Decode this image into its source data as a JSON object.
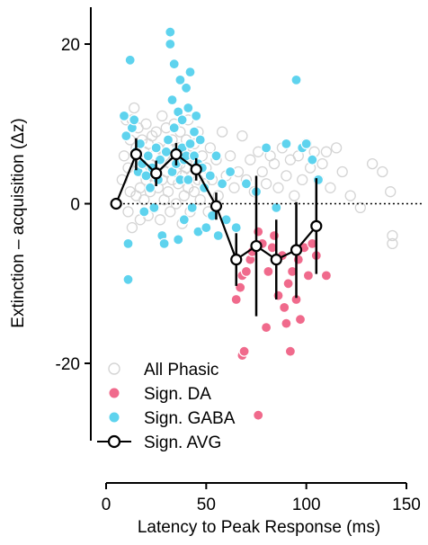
{
  "chart_data": {
    "type": "scatter",
    "title": "",
    "xlabel": "Latency to Peak Response (ms)",
    "ylabel": "Extinction – acquisition (Δz)",
    "xlim": [
      0,
      150
    ],
    "ylim": [
      -30,
      25
    ],
    "xticks": [
      {
        "value": 0,
        "label": "0"
      },
      {
        "value": 50,
        "label": "50"
      },
      {
        "value": 100,
        "label": "100"
      },
      {
        "value": 150,
        "label": "150"
      }
    ],
    "yticks": [
      {
        "value": 20,
        "label": "20"
      },
      {
        "value": 0,
        "label": "0"
      },
      {
        "value": -20,
        "label": "-20"
      }
    ],
    "zero_line": {
      "y": 0,
      "style": "dotted"
    },
    "legend": {
      "position": "bottom-left",
      "entries": [
        {
          "label": "All Phasic",
          "marker": "open-circle",
          "color": "#d4d4d4"
        },
        {
          "label": "Sign. DA",
          "marker": "filled-circle",
          "color": "#f06a8c"
        },
        {
          "label": "Sign. GABA",
          "marker": "filled-circle",
          "color": "#5ed3ee"
        },
        {
          "label": "Sign. AVG",
          "marker": "line-open-circle",
          "color": "#000000"
        }
      ]
    },
    "series": [
      {
        "name": "All Phasic",
        "color": "#d4d4d4",
        "marker": "open-circle",
        "points": [
          [
            8,
            3
          ],
          [
            9,
            6
          ],
          [
            10,
            10.5
          ],
          [
            11,
            4.5
          ],
          [
            11,
            -1
          ],
          [
            12,
            8
          ],
          [
            12,
            1.5
          ],
          [
            13,
            10.5
          ],
          [
            13,
            -3
          ],
          [
            14,
            12
          ],
          [
            15,
            7
          ],
          [
            15,
            1
          ],
          [
            16,
            5
          ],
          [
            16,
            9.5
          ],
          [
            17,
            2
          ],
          [
            17,
            -2
          ],
          [
            18,
            8
          ],
          [
            18,
            4
          ],
          [
            19,
            6.5
          ],
          [
            19,
            0.5
          ],
          [
            20,
            3
          ],
          [
            20,
            10
          ],
          [
            21,
            7.5
          ],
          [
            21,
            -1.5
          ],
          [
            22,
            5
          ],
          [
            22,
            1.5
          ],
          [
            23,
            8.5
          ],
          [
            23,
            3.5
          ],
          [
            24,
            6
          ],
          [
            24,
            -0.5
          ],
          [
            25,
            4
          ],
          [
            25,
            9
          ],
          [
            26,
            2
          ],
          [
            26,
            7
          ],
          [
            27,
            5.5
          ],
          [
            27,
            -2
          ],
          [
            28,
            11
          ],
          [
            28,
            3
          ],
          [
            29,
            6
          ],
          [
            29,
            0.5
          ],
          [
            30,
            9.5
          ],
          [
            30,
            4
          ],
          [
            31,
            7
          ],
          [
            31,
            1.5
          ],
          [
            32,
            5
          ],
          [
            32,
            -1
          ],
          [
            33,
            8
          ],
          [
            33,
            3
          ],
          [
            34,
            6
          ],
          [
            34,
            10
          ],
          [
            35,
            4
          ],
          [
            35,
            0
          ],
          [
            36,
            7
          ],
          [
            36,
            2.5
          ],
          [
            37,
            5
          ],
          [
            37,
            9
          ],
          [
            38,
            3.5
          ],
          [
            38,
            -2.5
          ],
          [
            39,
            6.5
          ],
          [
            39,
            1
          ],
          [
            40,
            8
          ],
          [
            40,
            4.5
          ],
          [
            41,
            2
          ],
          [
            41,
            10.5
          ],
          [
            42,
            6
          ],
          [
            42,
            -1
          ],
          [
            43,
            3.5
          ],
          [
            44,
            7.5
          ],
          [
            44,
            1.5
          ],
          [
            45,
            5
          ],
          [
            46,
            3
          ],
          [
            46,
            9
          ],
          [
            47,
            0.5
          ],
          [
            48,
            6
          ],
          [
            49,
            2.5
          ],
          [
            50,
            4.5
          ],
          [
            51,
            -1
          ],
          [
            52,
            7
          ],
          [
            53,
            3
          ],
          [
            55,
            5.5
          ],
          [
            56,
            1
          ],
          [
            58,
            9
          ],
          [
            60,
            3.5
          ],
          [
            62,
            6
          ],
          [
            64,
            2
          ],
          [
            66,
            4
          ],
          [
            68,
            8.5
          ],
          [
            70,
            3
          ],
          [
            72,
            5.5
          ],
          [
            74,
            1.5
          ],
          [
            76,
            6.5
          ],
          [
            78,
            4
          ],
          [
            80,
            2.5
          ],
          [
            82,
            6
          ],
          [
            84,
            5
          ],
          [
            86,
            2
          ],
          [
            88,
            7
          ],
          [
            90,
            3.5
          ],
          [
            92,
            5.5
          ],
          [
            94,
            1
          ],
          [
            96,
            6
          ],
          [
            98,
            3
          ],
          [
            100,
            7.5
          ],
          [
            102,
            4.5
          ],
          [
            104,
            6.5
          ],
          [
            106,
            3
          ],
          [
            108,
            5
          ],
          [
            110,
            6.5
          ],
          [
            112,
            2
          ],
          [
            115,
            7
          ],
          [
            118,
            4
          ],
          [
            122,
            1
          ],
          [
            127,
            -0.5
          ],
          [
            133,
            5
          ],
          [
            138,
            4
          ],
          [
            142,
            1.5
          ],
          [
            143,
            -4
          ],
          [
            143,
            -5
          ]
        ]
      },
      {
        "name": "Sign. DA",
        "color": "#f06a8c",
        "marker": "filled-circle",
        "points": [
          [
            65,
            -12
          ],
          [
            67,
            -10.5
          ],
          [
            68,
            -9
          ],
          [
            68,
            -19
          ],
          [
            69,
            -18.5
          ],
          [
            70,
            -8.5
          ],
          [
            72,
            -7
          ],
          [
            73,
            -6
          ],
          [
            76,
            -3.5
          ],
          [
            76,
            -26.5
          ],
          [
            78,
            -5
          ],
          [
            80,
            -15.5
          ],
          [
            81,
            -8.5
          ],
          [
            83,
            -5.5
          ],
          [
            84,
            -4
          ],
          [
            86,
            -11.5
          ],
          [
            88,
            -6.5
          ],
          [
            89,
            -13
          ],
          [
            90,
            -15
          ],
          [
            91,
            -10
          ],
          [
            92,
            -18.5
          ],
          [
            93,
            -8.5
          ],
          [
            95,
            -12
          ],
          [
            96,
            -7
          ],
          [
            97,
            -14.5
          ],
          [
            99,
            -5.5
          ],
          [
            101,
            -9
          ],
          [
            103,
            -5
          ],
          [
            105,
            -6.5
          ],
          [
            110,
            -9
          ]
        ]
      },
      {
        "name": "Sign. GABA",
        "color": "#5ed3ee",
        "marker": "filled-circle",
        "points": [
          [
            9,
            11
          ],
          [
            10,
            8.5
          ],
          [
            11,
            -5
          ],
          [
            11,
            -9.5
          ],
          [
            12,
            18
          ],
          [
            13,
            9.5
          ],
          [
            14,
            10.5
          ],
          [
            15,
            6.5
          ],
          [
            16,
            4
          ],
          [
            17,
            7.5
          ],
          [
            18,
            5
          ],
          [
            19,
            -1
          ],
          [
            20,
            3.5
          ],
          [
            21,
            6
          ],
          [
            22,
            2
          ],
          [
            23,
            4.5
          ],
          [
            24,
            -0.5
          ],
          [
            25,
            7
          ],
          [
            26,
            3
          ],
          [
            27,
            5.5
          ],
          [
            28,
            -4
          ],
          [
            29,
            -5
          ],
          [
            30,
            6.5
          ],
          [
            31,
            8
          ],
          [
            32,
            20
          ],
          [
            32,
            21.5
          ],
          [
            33,
            4
          ],
          [
            33,
            13
          ],
          [
            34,
            17.5
          ],
          [
            34,
            9.5
          ],
          [
            35,
            5
          ],
          [
            35,
            6.5
          ],
          [
            36,
            -4.5
          ],
          [
            36,
            11.5
          ],
          [
            37,
            15.5
          ],
          [
            37,
            3
          ],
          [
            38,
            7
          ],
          [
            38,
            10.5
          ],
          [
            39,
            5.5
          ],
          [
            39,
            -2
          ],
          [
            40,
            14.5
          ],
          [
            40,
            6
          ],
          [
            41,
            3
          ],
          [
            41,
            12
          ],
          [
            42,
            16.5
          ],
          [
            42,
            7.5
          ],
          [
            43,
            -0.5
          ],
          [
            44,
            9
          ],
          [
            44,
            6
          ],
          [
            45,
            11
          ],
          [
            46,
            5
          ],
          [
            46,
            -3.5
          ],
          [
            47,
            8
          ],
          [
            48,
            4.5
          ],
          [
            49,
            2
          ],
          [
            50,
            -3
          ],
          [
            52,
            3.5
          ],
          [
            53,
            -1.5
          ],
          [
            55,
            6
          ],
          [
            56,
            -4
          ],
          [
            58,
            2.5
          ],
          [
            60,
            -2
          ],
          [
            62,
            4
          ],
          [
            65,
            -3
          ],
          [
            70,
            2.5
          ],
          [
            75,
            1.5
          ],
          [
            80,
            7
          ],
          [
            85,
            -0.5
          ],
          [
            90,
            7.5
          ],
          [
            95,
            15.5
          ],
          [
            98,
            7
          ],
          [
            100,
            7.5
          ],
          [
            103,
            5.5
          ],
          [
            106,
            3
          ]
        ]
      }
    ],
    "avg_series": {
      "name": "Sign. AVG",
      "color": "#000000",
      "x": [
        5,
        15,
        25,
        35,
        45,
        55,
        65,
        75,
        85,
        95,
        105
      ],
      "y": [
        0,
        6.2,
        3.8,
        6.2,
        4.3,
        -0.3,
        -7,
        -5.3,
        -7,
        -5.8,
        -2.8
      ],
      "err": [
        0.3,
        2,
        1.6,
        1.4,
        1.4,
        1.7,
        3.3,
        8.8,
        5,
        6,
        6
      ]
    }
  }
}
